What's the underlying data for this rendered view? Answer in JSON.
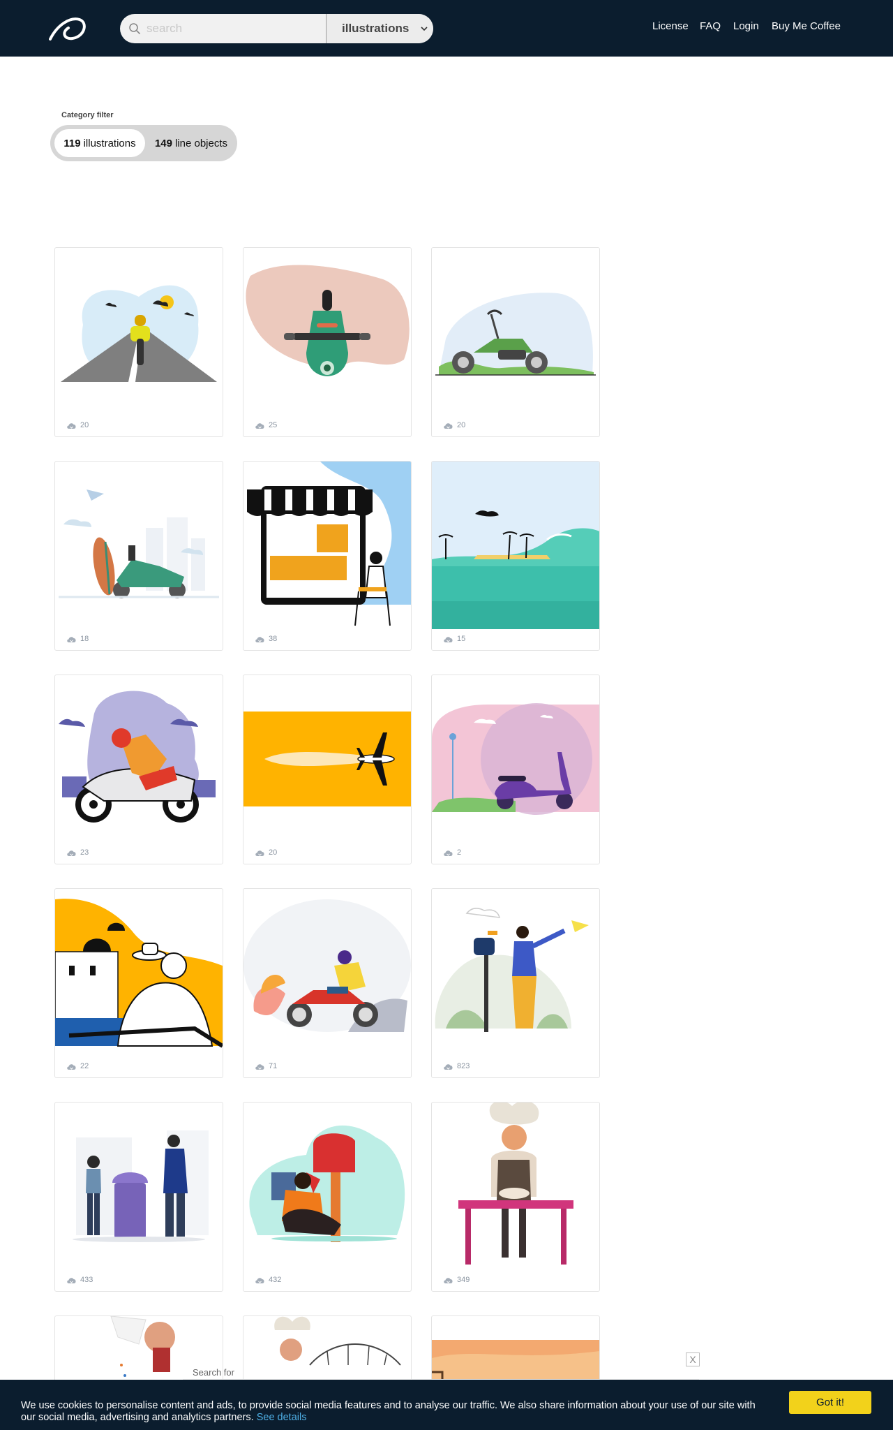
{
  "header": {
    "search_placeholder": "search",
    "category_select": "illustrations",
    "nav": [
      "License",
      "FAQ",
      "Login",
      "Buy Me Coffee"
    ]
  },
  "filter": {
    "title": "Category filter",
    "pills": [
      {
        "count": "119",
        "label": "illustrations",
        "active": true
      },
      {
        "count": "149",
        "label": "line objects",
        "active": false
      }
    ]
  },
  "cards": [
    {
      "art": "motorbike-road",
      "downloads": "20"
    },
    {
      "art": "scooter-top-view",
      "downloads": "25"
    },
    {
      "art": "chopper-motorcycle",
      "downloads": "20"
    },
    {
      "art": "scooter-surfboard-city",
      "downloads": "18"
    },
    {
      "art": "online-shop-tablet",
      "downloads": "38"
    },
    {
      "art": "beach-wave",
      "downloads": "15"
    },
    {
      "art": "sport-bike-rider",
      "downloads": "23"
    },
    {
      "art": "airplane-yellow-sky",
      "downloads": "20"
    },
    {
      "art": "purple-scooter-pink-sky",
      "downloads": "2"
    },
    {
      "art": "santorini-couple",
      "downloads": "22"
    },
    {
      "art": "motorcycle-rider-gray",
      "downloads": "71"
    },
    {
      "art": "man-paper-plane-mailbox",
      "downloads": "823"
    },
    {
      "art": "post-box-people",
      "downloads": "433"
    },
    {
      "art": "man-sitting-mailbox",
      "downloads": "432"
    },
    {
      "art": "chef-kneading-dough",
      "downloads": "349"
    },
    {
      "art": "chef-salting",
      "downloads": ""
    },
    {
      "art": "chef-bridge",
      "downloads": ""
    },
    {
      "art": "desert-frame",
      "downloads": ""
    }
  ],
  "ad": {
    "text": "Search for",
    "close": "X"
  },
  "cookie": {
    "message": "We use cookies to personalise content and ads, to provide social media features and to analyse our traffic. We also share information about your use of our site with our social media, advertising and analytics partners.",
    "link": "See details",
    "button": "Got it!"
  }
}
